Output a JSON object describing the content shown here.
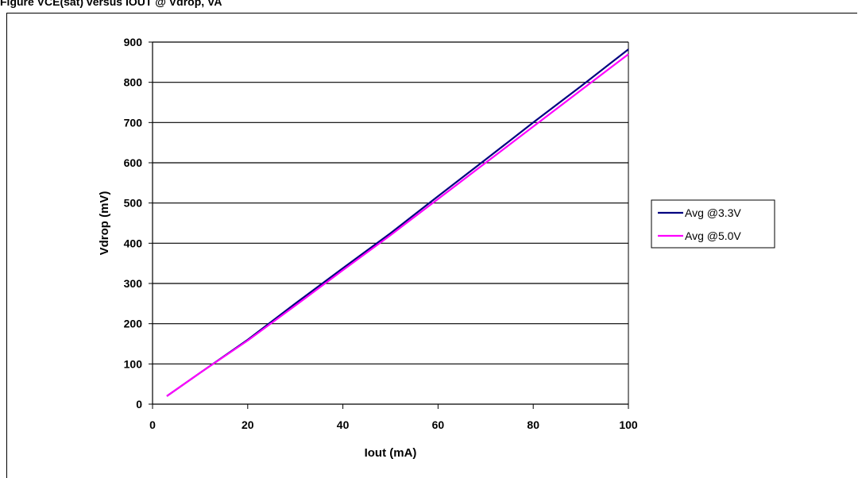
{
  "top_caption": "Figure        VCE(sat) versus IOUT @ Vdrop, VA",
  "chart_data": {
    "type": "line",
    "title": "",
    "xlabel": "Iout (mA)",
    "ylabel": "Vdrop (mV)",
    "xlim": [
      0,
      100
    ],
    "ylim": [
      0,
      900
    ],
    "xticks": [
      0,
      20,
      40,
      60,
      80,
      100
    ],
    "yticks": [
      0,
      100,
      200,
      300,
      400,
      500,
      600,
      700,
      800,
      900
    ],
    "grid": "horizontal",
    "legend_position": "right",
    "series": [
      {
        "name": "Avg @3.3V",
        "color": "#000080",
        "x": [
          3,
          10,
          20,
          30,
          40,
          50,
          60,
          70,
          80,
          90,
          100
        ],
        "y": [
          20,
          78,
          160,
          250,
          338,
          425,
          517,
          608,
          700,
          790,
          882
        ]
      },
      {
        "name": "Avg @5.0V",
        "color": "#ff00ff",
        "x": [
          3,
          10,
          20,
          30,
          40,
          50,
          60,
          70,
          80,
          90,
          100
        ],
        "y": [
          20,
          78,
          158,
          245,
          333,
          420,
          510,
          600,
          690,
          780,
          870
        ]
      }
    ]
  }
}
